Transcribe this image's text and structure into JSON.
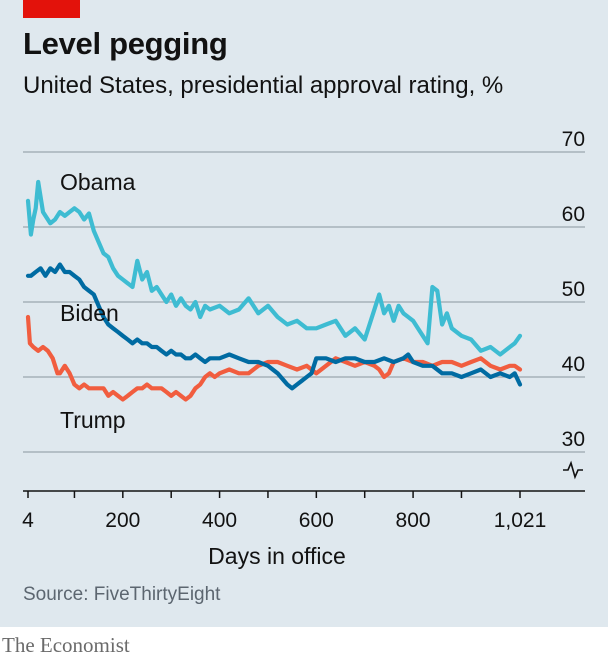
{
  "header": {
    "title": "Level pegging",
    "subtitle": "United States, presidential approval rating, %"
  },
  "footer": {
    "source": "Source: FiveThirtyEight",
    "brand": "The Economist"
  },
  "colors": {
    "accent_tab": "#e3120b",
    "obama": "#3ebcd2",
    "biden": "#006ba2",
    "trump": "#f15d3f",
    "grid": "#9ba6ae",
    "background": "#dfe8ee"
  },
  "chart_data": {
    "type": "line",
    "xlabel": "Days in office",
    "ylabel": "",
    "xlim": [
      4,
      1021
    ],
    "ylim": [
      25,
      70
    ],
    "y_ticks": [
      "70",
      "60",
      "50",
      "40",
      "30"
    ],
    "x_ticks": [
      "4",
      "200",
      "400",
      "600",
      "800",
      "1,021"
    ],
    "y_axis_break": true,
    "grid": true,
    "series": [
      {
        "name": "Obama",
        "color": "#3ebcd2",
        "x": [
          4,
          10,
          15,
          20,
          25,
          30,
          35,
          40,
          50,
          60,
          70,
          80,
          90,
          100,
          110,
          120,
          130,
          140,
          150,
          160,
          170,
          180,
          190,
          200,
          210,
          220,
          230,
          240,
          250,
          260,
          270,
          280,
          290,
          300,
          310,
          320,
          330,
          340,
          350,
          360,
          370,
          380,
          400,
          420,
          440,
          460,
          480,
          500,
          520,
          540,
          560,
          580,
          600,
          620,
          640,
          660,
          680,
          700,
          720,
          730,
          740,
          750,
          760,
          770,
          780,
          790,
          800,
          810,
          820,
          830,
          840,
          850,
          860,
          870,
          880,
          900,
          920,
          940,
          960,
          980,
          1000,
          1010,
          1021
        ],
        "values": [
          63.5,
          59,
          61,
          62.5,
          66,
          64,
          62,
          61.5,
          60.5,
          61,
          62,
          61.5,
          62,
          62.5,
          62,
          61,
          61.8,
          59.5,
          58,
          56.5,
          56,
          54.5,
          53.5,
          53,
          52.5,
          52,
          55.5,
          53,
          54,
          51.5,
          52,
          51,
          50,
          51,
          49.5,
          50.5,
          49.5,
          49,
          50,
          48,
          49.5,
          49,
          49.5,
          48.5,
          49,
          50.5,
          48.5,
          49.5,
          48,
          47,
          47.5,
          46.5,
          46.5,
          47,
          47.5,
          45.5,
          46.5,
          45,
          49,
          51,
          48.5,
          49.5,
          47.5,
          49.5,
          48.5,
          48,
          47.5,
          46.5,
          45.5,
          44.5,
          52,
          51.5,
          47,
          48.5,
          46.5,
          45.5,
          45,
          43.5,
          44,
          43,
          44,
          44.5,
          45.5
        ]
      },
      {
        "name": "Biden",
        "color": "#006ba2",
        "x": [
          4,
          10,
          20,
          30,
          40,
          50,
          60,
          70,
          80,
          90,
          100,
          110,
          120,
          130,
          140,
          150,
          160,
          170,
          180,
          190,
          200,
          210,
          220,
          230,
          240,
          250,
          260,
          270,
          280,
          290,
          300,
          310,
          320,
          330,
          340,
          350,
          360,
          370,
          380,
          400,
          420,
          440,
          460,
          480,
          500,
          520,
          540,
          550,
          560,
          570,
          580,
          590,
          600,
          620,
          640,
          660,
          680,
          700,
          720,
          740,
          760,
          780,
          790,
          800,
          820,
          840,
          860,
          880,
          900,
          920,
          940,
          960,
          980,
          1000,
          1010,
          1021
        ],
        "values": [
          53.5,
          53.5,
          54,
          54.5,
          53.5,
          54.5,
          54,
          55,
          54,
          54,
          53.5,
          53,
          52,
          51.5,
          51,
          49.5,
          48,
          47,
          46.5,
          46,
          45.5,
          45,
          44.5,
          45,
          44.5,
          44.5,
          44,
          44,
          43.5,
          43,
          43.5,
          43,
          43,
          42.5,
          42.5,
          43,
          42.5,
          42,
          42.5,
          42.5,
          43,
          42.5,
          42,
          42,
          41.5,
          40.5,
          39,
          38.5,
          39,
          39.5,
          40,
          40.5,
          42.5,
          42.5,
          42,
          42.5,
          42.5,
          42,
          42,
          42.5,
          42,
          42.5,
          43,
          42,
          41.5,
          41.5,
          40.5,
          40.5,
          40,
          40.5,
          41,
          40,
          40.5,
          40,
          40.5,
          39
        ]
      },
      {
        "name": "Trump",
        "color": "#f15d3f",
        "x": [
          4,
          8,
          15,
          25,
          35,
          45,
          55,
          65,
          70,
          80,
          90,
          100,
          110,
          120,
          130,
          140,
          150,
          160,
          170,
          180,
          190,
          200,
          210,
          220,
          230,
          240,
          250,
          260,
          270,
          280,
          290,
          300,
          310,
          320,
          330,
          340,
          350,
          360,
          370,
          380,
          390,
          400,
          420,
          440,
          460,
          480,
          500,
          520,
          540,
          560,
          580,
          600,
          620,
          640,
          660,
          680,
          700,
          720,
          730,
          740,
          750,
          760,
          780,
          800,
          820,
          840,
          860,
          880,
          900,
          920,
          940,
          960,
          980,
          1000,
          1010,
          1021
        ],
        "values": [
          48,
          44.5,
          44,
          43.5,
          44,
          43.5,
          42.5,
          40.5,
          40.5,
          41.5,
          40.5,
          39,
          38.5,
          39,
          38.5,
          38.5,
          38.5,
          38.5,
          37.5,
          38,
          37.5,
          37,
          37.5,
          38,
          38.5,
          38.5,
          39,
          38.5,
          38.5,
          38.5,
          38,
          37.5,
          38,
          37.5,
          37,
          37.5,
          38.5,
          39,
          40,
          40.5,
          40,
          40.5,
          41,
          40.5,
          40.5,
          41.5,
          42,
          42,
          41.5,
          41,
          41.5,
          40.5,
          41.5,
          42.5,
          42,
          41.5,
          42,
          41.5,
          41,
          40,
          40.5,
          42,
          42.5,
          42,
          42,
          41.5,
          42,
          42,
          41.5,
          42,
          42.5,
          41.5,
          41,
          41.5,
          41.5,
          41
        ]
      }
    ]
  }
}
